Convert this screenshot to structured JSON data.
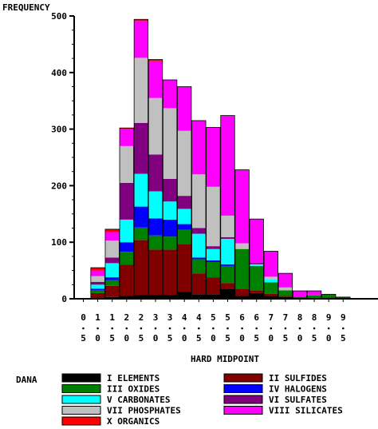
{
  "chart_data": {
    "type": "bar",
    "stacked": true,
    "ylabel": "FREQUENCY",
    "xlabel": "HARD MIDPOINT",
    "legend_title": "DANA",
    "legend_position": "bottom",
    "ylim": [
      0,
      500
    ],
    "y_ticks": [
      "0",
      "100",
      "200",
      "300",
      "400",
      "500"
    ],
    "grid": false,
    "categories": [
      "0.5",
      "1.0",
      "1.5",
      "2.0",
      "2.5",
      "3.0",
      "3.5",
      "4.0",
      "4.5",
      "5.0",
      "5.5",
      "6.0",
      "6.5",
      "7.0",
      "7.5",
      "8.0",
      "8.5",
      "9.0",
      "9.5"
    ],
    "category_labels": [
      [
        "0",
        "",
        "5"
      ],
      [
        "1",
        "",
        "0"
      ],
      [
        "1",
        "",
        "5"
      ],
      [
        "2",
        "",
        "0"
      ],
      [
        "2",
        "",
        "5"
      ],
      [
        "3",
        "",
        "0"
      ],
      [
        "3",
        "",
        "5"
      ],
      [
        "4",
        "",
        "0"
      ],
      [
        "4",
        "",
        "5"
      ],
      [
        "5",
        "",
        "0"
      ],
      [
        "5",
        "",
        "5"
      ],
      [
        "6",
        "",
        "0"
      ],
      [
        "6",
        "",
        "5"
      ],
      [
        "7",
        "",
        "0"
      ],
      [
        "7",
        "",
        "5"
      ],
      [
        "8",
        "",
        "0"
      ],
      [
        "8",
        "",
        "5"
      ],
      [
        "9",
        "",
        "0"
      ],
      [
        "9",
        "",
        "5"
      ]
    ],
    "series": [
      {
        "name": "I ELEMENTS",
        "color": "#000000",
        "values": [
          0,
          2,
          3,
          5,
          7,
          7,
          7,
          12,
          8,
          8,
          18,
          5,
          10,
          5,
          3,
          2,
          1,
          2,
          2
        ]
      },
      {
        "name": "II SULFIDES",
        "color": "#800000",
        "values": [
          0,
          8,
          20,
          55,
          97,
          80,
          80,
          85,
          37,
          30,
          10,
          13,
          5,
          4,
          2,
          0,
          0,
          0,
          0
        ]
      },
      {
        "name": "III OXIDES",
        "color": "#008000",
        "values": [
          0,
          5,
          10,
          23,
          22,
          25,
          23,
          25,
          25,
          27,
          30,
          70,
          43,
          20,
          10,
          2,
          5,
          6,
          1
        ]
      },
      {
        "name": "IV HALOGENS",
        "color": "#0000ff",
        "values": [
          0,
          3,
          5,
          17,
          37,
          30,
          30,
          10,
          3,
          3,
          3,
          0,
          0,
          0,
          0,
          0,
          0,
          0,
          0
        ]
      },
      {
        "name": "V CARBONATES",
        "color": "#00ffff",
        "values": [
          0,
          7,
          25,
          40,
          58,
          48,
          32,
          27,
          42,
          20,
          45,
          0,
          3,
          5,
          0,
          0,
          0,
          0,
          0
        ]
      },
      {
        "name": "VI SULFATES",
        "color": "#800080",
        "values": [
          0,
          5,
          10,
          65,
          90,
          65,
          40,
          23,
          10,
          5,
          3,
          0,
          3,
          0,
          0,
          0,
          0,
          0,
          0
        ]
      },
      {
        "name": "VII PHOSPHATES",
        "color": "#c0c0c0",
        "values": [
          0,
          10,
          30,
          65,
          115,
          100,
          125,
          115,
          95,
          105,
          38,
          10,
          0,
          5,
          5,
          0,
          0,
          0,
          0
        ]
      },
      {
        "name": "VIII SILICATES",
        "color": "#ff00ff",
        "values": [
          0,
          10,
          15,
          30,
          65,
          65,
          50,
          78,
          95,
          105,
          177,
          130,
          77,
          45,
          25,
          10,
          8,
          0,
          0
        ]
      },
      {
        "name": "X ORGANICS",
        "color": "#ff0000",
        "values": [
          0,
          5,
          5,
          2,
          3,
          3,
          0,
          0,
          0,
          0,
          0,
          0,
          0,
          0,
          0,
          0,
          0,
          0,
          0
        ]
      }
    ]
  },
  "legend_rows": [
    [
      "I ELEMENTS",
      "II SULFIDES"
    ],
    [
      "III OXIDES",
      "IV HALOGENS"
    ],
    [
      "V CARBONATES",
      "VI SULFATES"
    ],
    [
      "VII PHOSPHATES",
      "VIII SILICATES"
    ],
    [
      "X ORGANICS"
    ]
  ]
}
